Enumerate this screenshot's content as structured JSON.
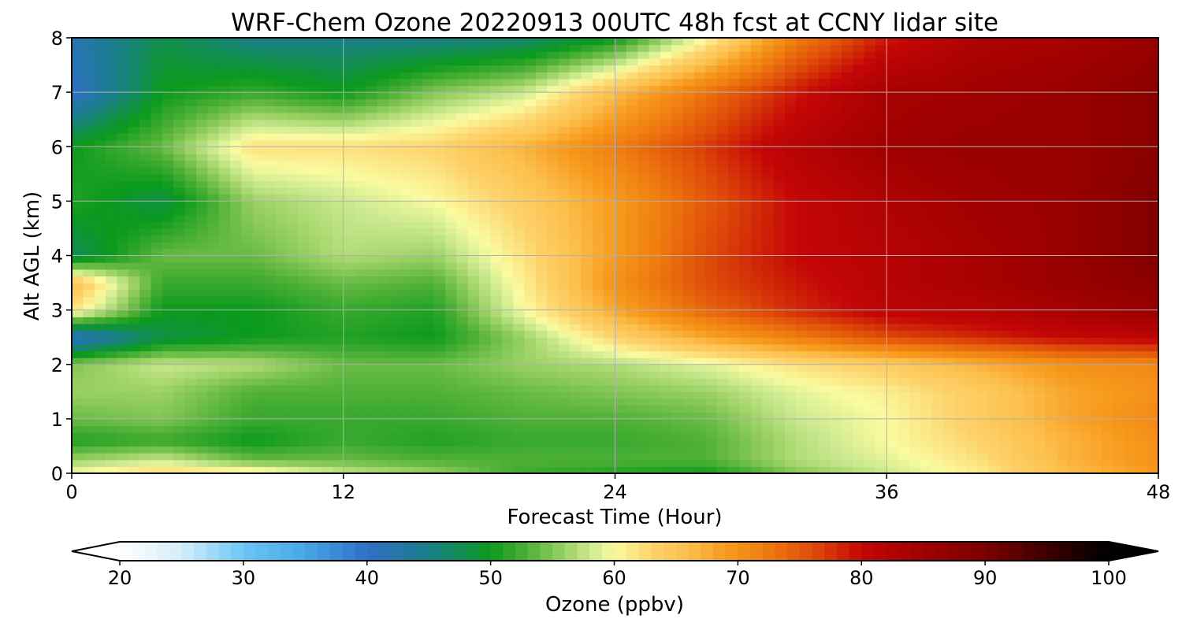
{
  "chart_data": {
    "type": "heatmap",
    "title": "WRF-Chem Ozone  20220913 00UTC 48h fcst at CCNY lidar site",
    "xlabel": "Forecast Time (Hour)",
    "ylabel": "Alt AGL (km)",
    "xlim": [
      0,
      48
    ],
    "ylim": [
      0,
      8
    ],
    "x_ticks": [
      "0",
      "12",
      "24",
      "36",
      "48"
    ],
    "y_ticks": [
      "0",
      "1",
      "2",
      "3",
      "4",
      "5",
      "6",
      "7",
      "8"
    ],
    "grid": true,
    "grid_x": [
      0,
      4,
      8,
      12,
      16,
      20,
      24,
      28,
      32,
      36,
      40,
      44,
      48
    ],
    "grid_y": [
      0,
      0.25,
      0.6,
      1,
      1.5,
      2,
      2.5,
      3,
      3.5,
      4,
      5,
      6,
      7,
      8
    ],
    "values": [
      [
        60,
        56,
        51,
        54,
        56,
        55,
        40,
        62,
        66,
        47,
        51,
        50,
        40,
        42
      ],
      [
        63,
        58,
        52,
        55,
        56,
        58,
        48,
        50,
        52,
        54,
        48,
        54,
        50,
        48
      ],
      [
        62,
        54,
        50,
        52,
        53,
        57,
        50,
        50,
        52,
        54,
        56,
        62,
        52,
        45
      ],
      [
        58,
        54,
        52,
        52,
        53,
        54,
        51,
        52,
        54,
        57,
        58,
        62,
        50,
        45
      ],
      [
        56,
        53,
        51,
        52,
        53,
        54,
        50,
        51,
        53,
        56,
        60,
        63,
        55,
        45
      ],
      [
        52,
        53,
        52,
        53,
        54,
        56,
        56,
        60,
        61,
        62,
        64,
        67,
        58,
        46
      ],
      [
        51,
        53,
        52,
        53,
        55,
        57,
        63,
        68,
        70,
        69,
        69,
        72,
        66,
        50
      ],
      [
        50,
        53,
        53,
        54,
        56,
        59,
        68,
        74,
        76,
        76,
        75,
        77,
        73,
        60
      ],
      [
        55,
        57,
        57,
        58,
        59,
        62,
        72,
        78,
        79,
        80,
        80,
        82,
        79,
        72
      ],
      [
        58,
        59,
        60,
        60,
        61,
        64,
        76,
        81,
        82,
        82,
        83,
        85,
        84,
        79
      ],
      [
        61,
        62,
        63,
        64,
        64,
        67,
        78,
        82,
        84,
        84,
        85,
        86,
        85,
        83
      ],
      [
        66,
        67,
        67,
        68,
        68,
        70,
        80,
        84,
        86,
        86,
        86,
        86,
        86,
        84
      ],
      [
        69,
        70,
        70,
        71,
        70,
        71,
        81,
        86,
        88,
        89,
        89,
        88,
        88,
        86
      ]
    ],
    "colorbar": {
      "label": "Ozone  (ppbv)",
      "min": 20,
      "max": 100,
      "ticks": [
        "20",
        "30",
        "40",
        "50",
        "60",
        "70",
        "80",
        "90",
        "100"
      ],
      "extend": "both",
      "colors": [
        [
          20,
          "#ffffff"
        ],
        [
          25,
          "#d2eefb"
        ],
        [
          30,
          "#6cc6f5"
        ],
        [
          35,
          "#47a7e6"
        ],
        [
          40,
          "#2f6fc6"
        ],
        [
          45,
          "#1a7f8a"
        ],
        [
          50,
          "#0a9a1c"
        ],
        [
          53,
          "#4fb037"
        ],
        [
          56,
          "#9bd164"
        ],
        [
          58,
          "#c9e88e"
        ],
        [
          60,
          "#fafba0"
        ],
        [
          63,
          "#fdd36c"
        ],
        [
          66,
          "#fcbf4b"
        ],
        [
          69,
          "#f79a1d"
        ],
        [
          72,
          "#f07f10"
        ],
        [
          76,
          "#df4d09"
        ],
        [
          80,
          "#c40606"
        ],
        [
          85,
          "#a00000"
        ],
        [
          90,
          "#7a0000"
        ],
        [
          95,
          "#3d0000"
        ],
        [
          100,
          "#000000"
        ]
      ]
    }
  }
}
